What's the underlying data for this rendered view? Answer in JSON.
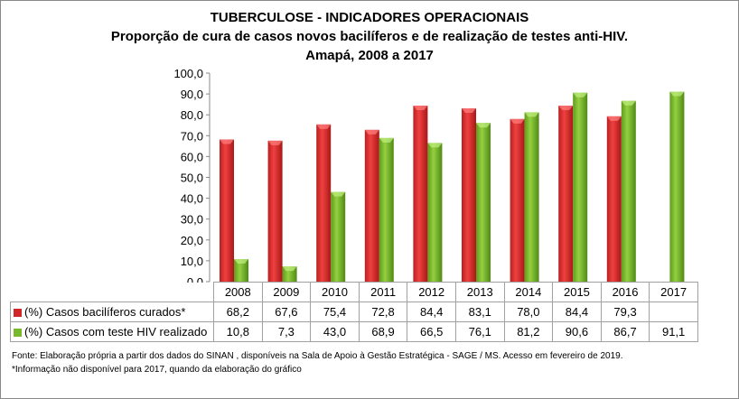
{
  "chart_data": {
    "type": "bar",
    "title": "TUBERCULOSE - INDICADORES OPERACIONAIS",
    "subtitle": "Proporção de cura de casos novos bacilíferos e de realização de testes anti-HIV.",
    "subtitle2": "Amapá, 2008 a 2017",
    "categories": [
      "2008",
      "2009",
      "2010",
      "2011",
      "2012",
      "2013",
      "2014",
      "2015",
      "2016",
      "2017"
    ],
    "ylim": [
      0,
      100
    ],
    "yticks": [
      "0,0",
      "10,0",
      "20,0",
      "30,0",
      "40,0",
      "50,0",
      "60,0",
      "70,0",
      "80,0",
      "90,0",
      "100,0"
    ],
    "grid": false,
    "legend": "data-table",
    "series": [
      {
        "name": "(%) Casos bacilíferos curados*",
        "color": "#e03030",
        "values": [
          68.2,
          67.6,
          75.4,
          72.8,
          84.4,
          83.1,
          78.0,
          84.4,
          79.3,
          null
        ],
        "labels": [
          "68,2",
          "67,6",
          "75,4",
          "72,8",
          "84,4",
          "83,1",
          "78,0",
          "84,4",
          "79,3",
          ""
        ]
      },
      {
        "name": "(%) Casos com teste HIV realizado",
        "color": "#80c030",
        "values": [
          10.8,
          7.3,
          43.0,
          68.9,
          66.5,
          76.1,
          81.2,
          90.6,
          86.7,
          91.1
        ],
        "labels": [
          "10,8",
          "7,3",
          "43,0",
          "68,9",
          "66,5",
          "76,1",
          "81,2",
          "90,6",
          "86,7",
          "91,1"
        ]
      }
    ]
  },
  "notes": {
    "source": "Fonte: Elaboração própria a partir dos dados do SINAN , disponíveis na Sala de  Apoio  à Gestão Estratégica - SAGE / MS. Acesso  em fevereiro de 2019.",
    "footnote": "*Informação não  disponível  para 2017,  quando da elaboração do gráfico"
  }
}
